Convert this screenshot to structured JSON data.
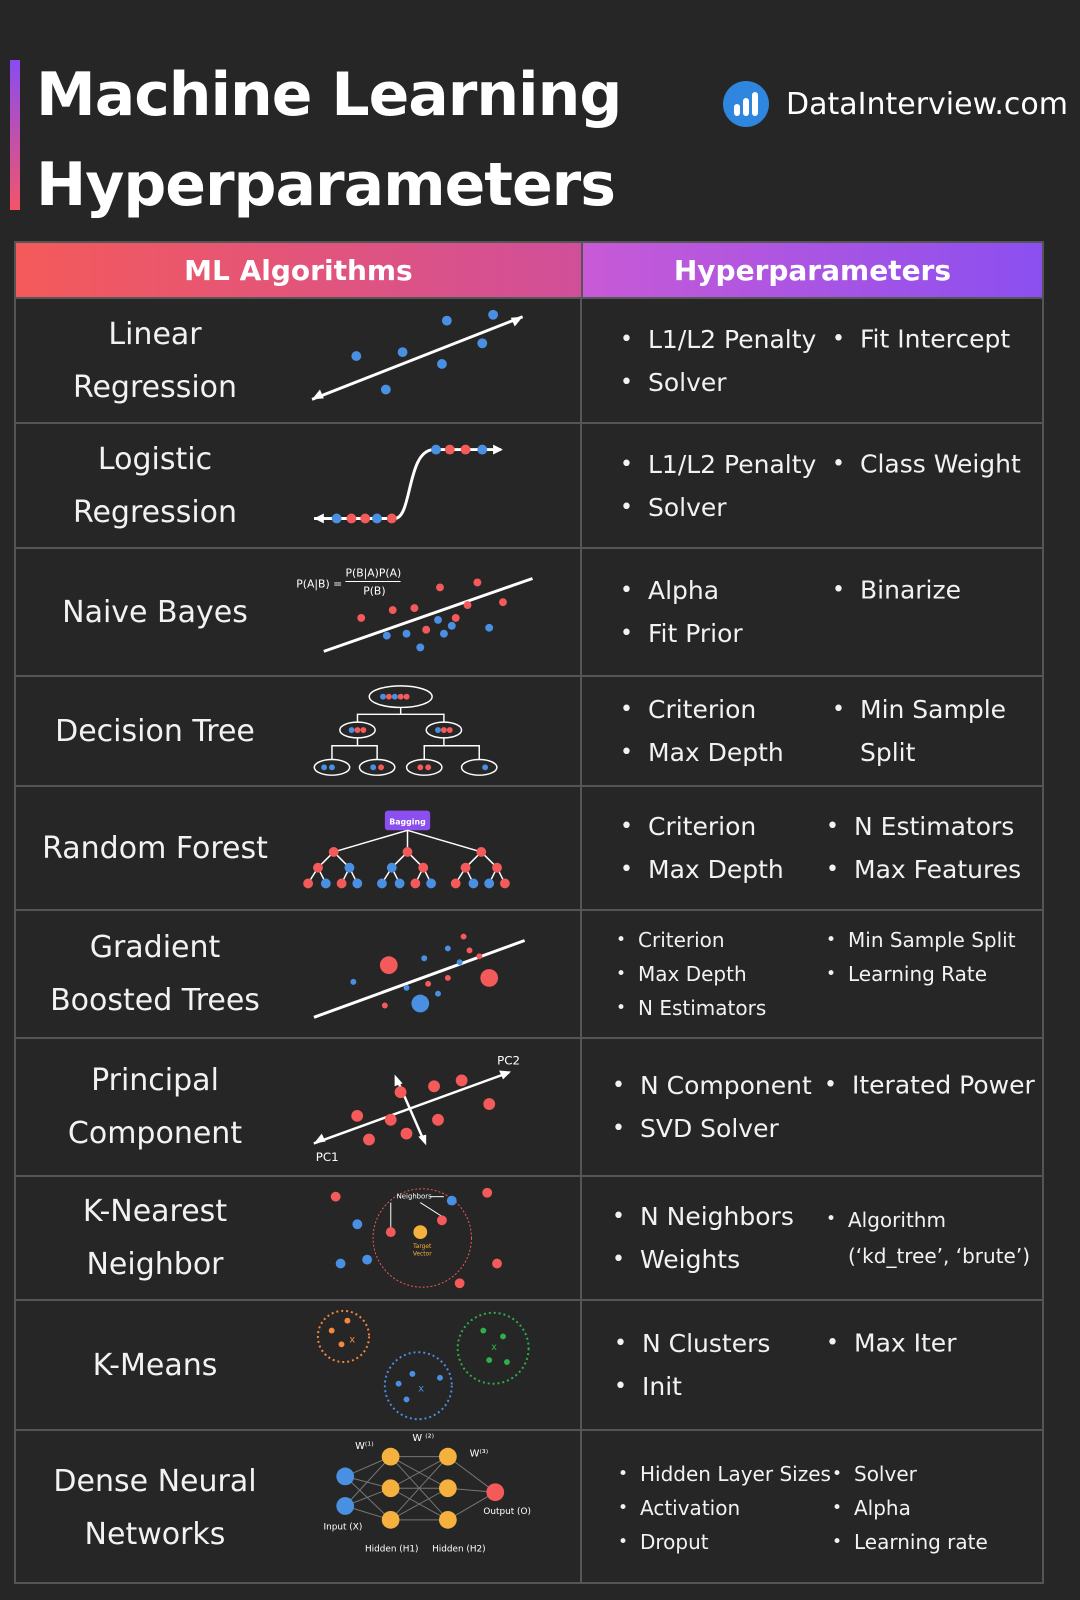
{
  "header": {
    "title_line1": "Machine Learning",
    "title_line2": "Hyperparameters",
    "brand": "DataInterview.com"
  },
  "table": {
    "col_algorithms": "ML Algorithms",
    "col_hyperparameters": "Hyperparameters"
  },
  "colors": {
    "red": "#f45a5a",
    "blue": "#4a90e2",
    "orange": "#f5b13d",
    "green": "#2fae4a",
    "purple": "#8b4ff0"
  },
  "rows": [
    {
      "name": "Linear\nRegression",
      "hyp_left": [
        "L1/L2 Penalty",
        "Solver"
      ],
      "hyp_right": [
        "Fit Intercept"
      ]
    },
    {
      "name": "Logistic\nRegression",
      "hyp_left": [
        "L1/L2 Penalty",
        "Solver"
      ],
      "hyp_right": [
        "Class Weight"
      ]
    },
    {
      "name": "Naive Bayes",
      "hyp_left": [
        "Alpha",
        "Fit Prior"
      ],
      "hyp_right": [
        "Binarize"
      ],
      "formula_left": "P(A|B) =",
      "formula_num": "P(B|A)P(A)",
      "formula_den": "P(B)"
    },
    {
      "name": "Decision Tree",
      "hyp_left": [
        "Criterion",
        "Max Depth"
      ],
      "hyp_right": [
        "Min Sample\nSplit"
      ]
    },
    {
      "name": "Random Forest",
      "hyp_left": [
        "Criterion",
        "Max Depth"
      ],
      "hyp_right": [
        "N Estimators",
        "Max Features"
      ],
      "bagging_label": "Bagging"
    },
    {
      "name": "Gradient\nBoosted Trees",
      "hyp_left": [
        "Criterion",
        "Max Depth",
        "N Estimators"
      ],
      "hyp_right": [
        "Min Sample Split",
        "Learning Rate"
      ]
    },
    {
      "name": "Principal\nComponent",
      "hyp_left": [
        "N Component",
        "SVD Solver"
      ],
      "hyp_right": [
        "Iterated Power"
      ],
      "pc1": "PC1",
      "pc2": "PC2"
    },
    {
      "name": "K-Nearest\nNeighbor",
      "hyp_left": [
        "N Neighbors",
        "Weights"
      ],
      "hyp_right": [
        "Algorithm\n(‘kd_tree’, ‘brute’)"
      ],
      "neighbors_label": "Neighbors",
      "target_label1": "Target",
      "target_label2": "Vector"
    },
    {
      "name": "K-Means",
      "hyp_left": [
        "N Clusters",
        "Init"
      ],
      "hyp_right": [
        "Max Iter"
      ]
    },
    {
      "name": "Dense Neural\nNetworks",
      "hyp_left": [
        "Hidden Layer Sizes",
        "Activation",
        "Droput"
      ],
      "hyp_right": [
        "Solver",
        "Alpha",
        "Learning rate"
      ],
      "w1": "W⁽¹⁾",
      "w2": "W ⁽²⁾",
      "w3": "W⁽³⁾",
      "input": "Input (X)",
      "h1": "Hidden (H1)",
      "h2": "Hidden (H2)",
      "output": "Output (O)"
    }
  ]
}
